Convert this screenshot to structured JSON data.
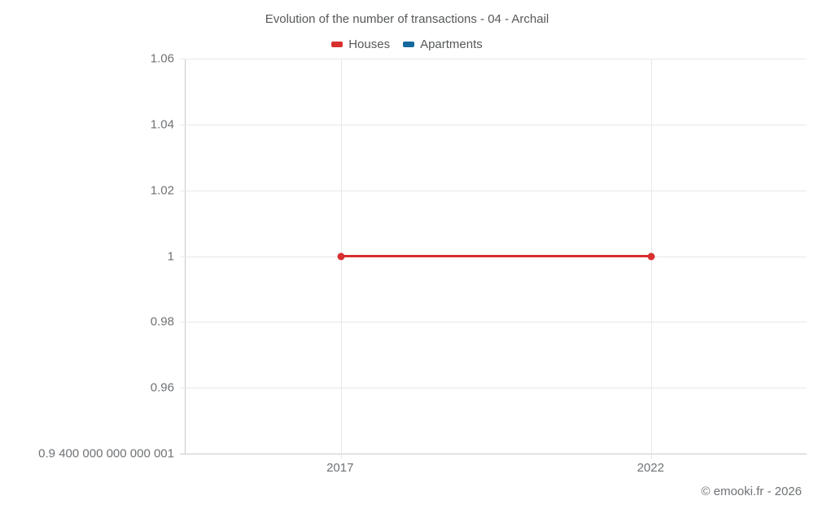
{
  "chart_data": {
    "type": "line",
    "title": "Evolution of the number of transactions - 04 - Archail",
    "legend_position": "top",
    "grid": true,
    "xlim": [
      2014.5,
      2024.5
    ],
    "ylim": [
      0.94,
      1.06
    ],
    "x_ticks": [
      "2017",
      "2022"
    ],
    "y_ticks": [
      "1.06",
      "1.04",
      "1.02",
      "1",
      "0.98",
      "0.96",
      "0.9 400 000 000 000 001"
    ],
    "y_tick_values": [
      1.06,
      1.04,
      1.02,
      1,
      0.98,
      0.96,
      0.94
    ],
    "series": [
      {
        "name": "Houses",
        "color": "#d7302f",
        "x": [
          2017,
          2022
        ],
        "values": [
          1,
          1
        ]
      },
      {
        "name": "Apartments",
        "color": "#15699c",
        "x": [],
        "values": []
      }
    ]
  },
  "footer": {
    "copyright": "© emooki.fr - 2026"
  }
}
